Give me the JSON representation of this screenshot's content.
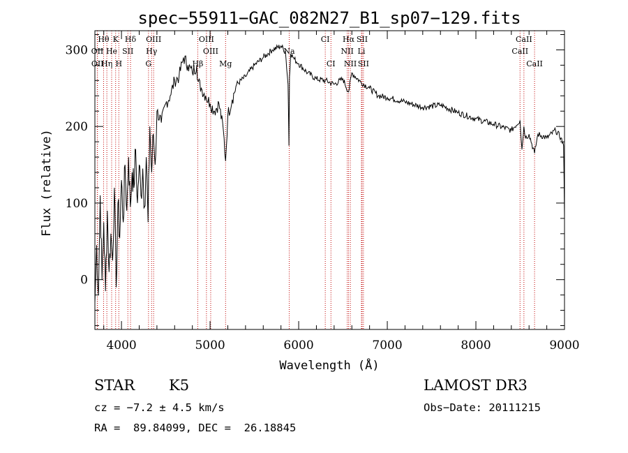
{
  "chart_data": {
    "type": "line",
    "title": "spec−55911−GAC_082N27_B1_sp07−129.fits",
    "xlabel": "Wavelength (Å)",
    "ylabel": "Flux (relative)",
    "xlim": [
      3700,
      9000
    ],
    "ylim": [
      -65,
      325
    ],
    "x_ticks": [
      4000,
      5000,
      6000,
      7000,
      8000,
      9000
    ],
    "y_ticks": [
      0,
      100,
      200,
      300
    ],
    "grid": false,
    "series": [
      {
        "name": "spectrum",
        "x": [
          3700,
          3720,
          3740,
          3760,
          3780,
          3800,
          3820,
          3840,
          3860,
          3880,
          3900,
          3920,
          3940,
          3960,
          3980,
          4000,
          4020,
          4040,
          4060,
          4080,
          4100,
          4120,
          4140,
          4160,
          4180,
          4200,
          4220,
          4240,
          4260,
          4280,
          4300,
          4320,
          4340,
          4360,
          4380,
          4400,
          4450,
          4500,
          4550,
          4600,
          4650,
          4700,
          4750,
          4800,
          4850,
          4860,
          4900,
          4950,
          5000,
          5050,
          5100,
          5150,
          5175,
          5200,
          5250,
          5300,
          5400,
          5500,
          5600,
          5700,
          5800,
          5850,
          5880,
          5890,
          5896,
          5910,
          5950,
          6000,
          6100,
          6200,
          6300,
          6400,
          6500,
          6563,
          6600,
          6700,
          6800,
          6900,
          7000,
          7200,
          7400,
          7600,
          7800,
          8000,
          8200,
          8400,
          8498,
          8520,
          8542,
          8560,
          8600,
          8662,
          8700,
          8800,
          8900,
          8960,
          8990,
          9000
        ],
        "values": [
          -30,
          45,
          -20,
          110,
          0,
          75,
          -15,
          90,
          10,
          60,
          25,
          120,
          -10,
          100,
          55,
          130,
          75,
          150,
          90,
          160,
          95,
          140,
          120,
          170,
          100,
          150,
          110,
          145,
          95,
          160,
          75,
          200,
          140,
          190,
          150,
          220,
          205,
          230,
          240,
          260,
          265,
          290,
          280,
          270,
          280,
          260,
          250,
          240,
          230,
          220,
          230,
          195,
          155,
          215,
          235,
          255,
          265,
          280,
          290,
          300,
          305,
          298,
          255,
          175,
          265,
          295,
          288,
          282,
          270,
          262,
          260,
          255,
          262,
          245,
          270,
          258,
          250,
          240,
          238,
          232,
          225,
          228,
          218,
          210,
          203,
          195,
          208,
          170,
          200,
          185,
          190,
          165,
          190,
          185,
          195,
          185,
          175,
          80
        ]
      }
    ],
    "spectral_lines": [
      {
        "label": "Hθ",
        "x": 3798,
        "row": 0
      },
      {
        "label": "K",
        "x": 3934,
        "row": 0
      },
      {
        "label": "Hδ",
        "x": 4102,
        "row": 0
      },
      {
        "label": "OIII",
        "x": 4363,
        "row": 0
      },
      {
        "label": "OIII",
        "x": 4959,
        "row": 0
      },
      {
        "label": "CI",
        "x": 6300,
        "row": 0
      },
      {
        "label": "Hα",
        "x": 6563,
        "row": 0
      },
      {
        "label": "SII",
        "x": 6716,
        "row": 0
      },
      {
        "label": "CaII",
        "x": 8542,
        "row": 0
      },
      {
        "label": "OII",
        "x": 3727,
        "row": 1
      },
      {
        "label": "He",
        "x": 3889,
        "row": 1
      },
      {
        "label": "SII",
        "x": 4072,
        "row": 1
      },
      {
        "label": "Hγ",
        "x": 4340,
        "row": 1
      },
      {
        "label": "OIII",
        "x": 5007,
        "row": 1
      },
      {
        "label": "Na",
        "x": 5893,
        "row": 1
      },
      {
        "label": "NII",
        "x": 6548,
        "row": 1
      },
      {
        "label": "Li",
        "x": 6708,
        "row": 1
      },
      {
        "label": "CaII",
        "x": 8498,
        "row": 1
      },
      {
        "label": "OII",
        "x": 3729,
        "row": 2
      },
      {
        "label": "Hη",
        "x": 3835,
        "row": 2
      },
      {
        "label": "H",
        "x": 3970,
        "row": 2
      },
      {
        "label": "G",
        "x": 4305,
        "row": 2
      },
      {
        "label": "Hβ",
        "x": 4861,
        "row": 2
      },
      {
        "label": "Mg",
        "x": 5175,
        "row": 2
      },
      {
        "label": "CI",
        "x": 6364,
        "row": 2
      },
      {
        "label": "NII",
        "x": 6583,
        "row": 2
      },
      {
        "label": "SII",
        "x": 6731,
        "row": 2
      },
      {
        "label": "CaII",
        "x": 8662,
        "row": 2
      }
    ]
  },
  "info": {
    "class": "STAR",
    "subclass": "K5",
    "survey": "LAMOST DR3",
    "cz": "cz = −7.2 ± 4.5 km/s",
    "obs_date": "Obs−Date: 20111215",
    "radec": "RA =  89.84099, DEC =  26.18845"
  },
  "colors": {
    "line_marker": "#c00000",
    "spectrum": "#000000"
  }
}
